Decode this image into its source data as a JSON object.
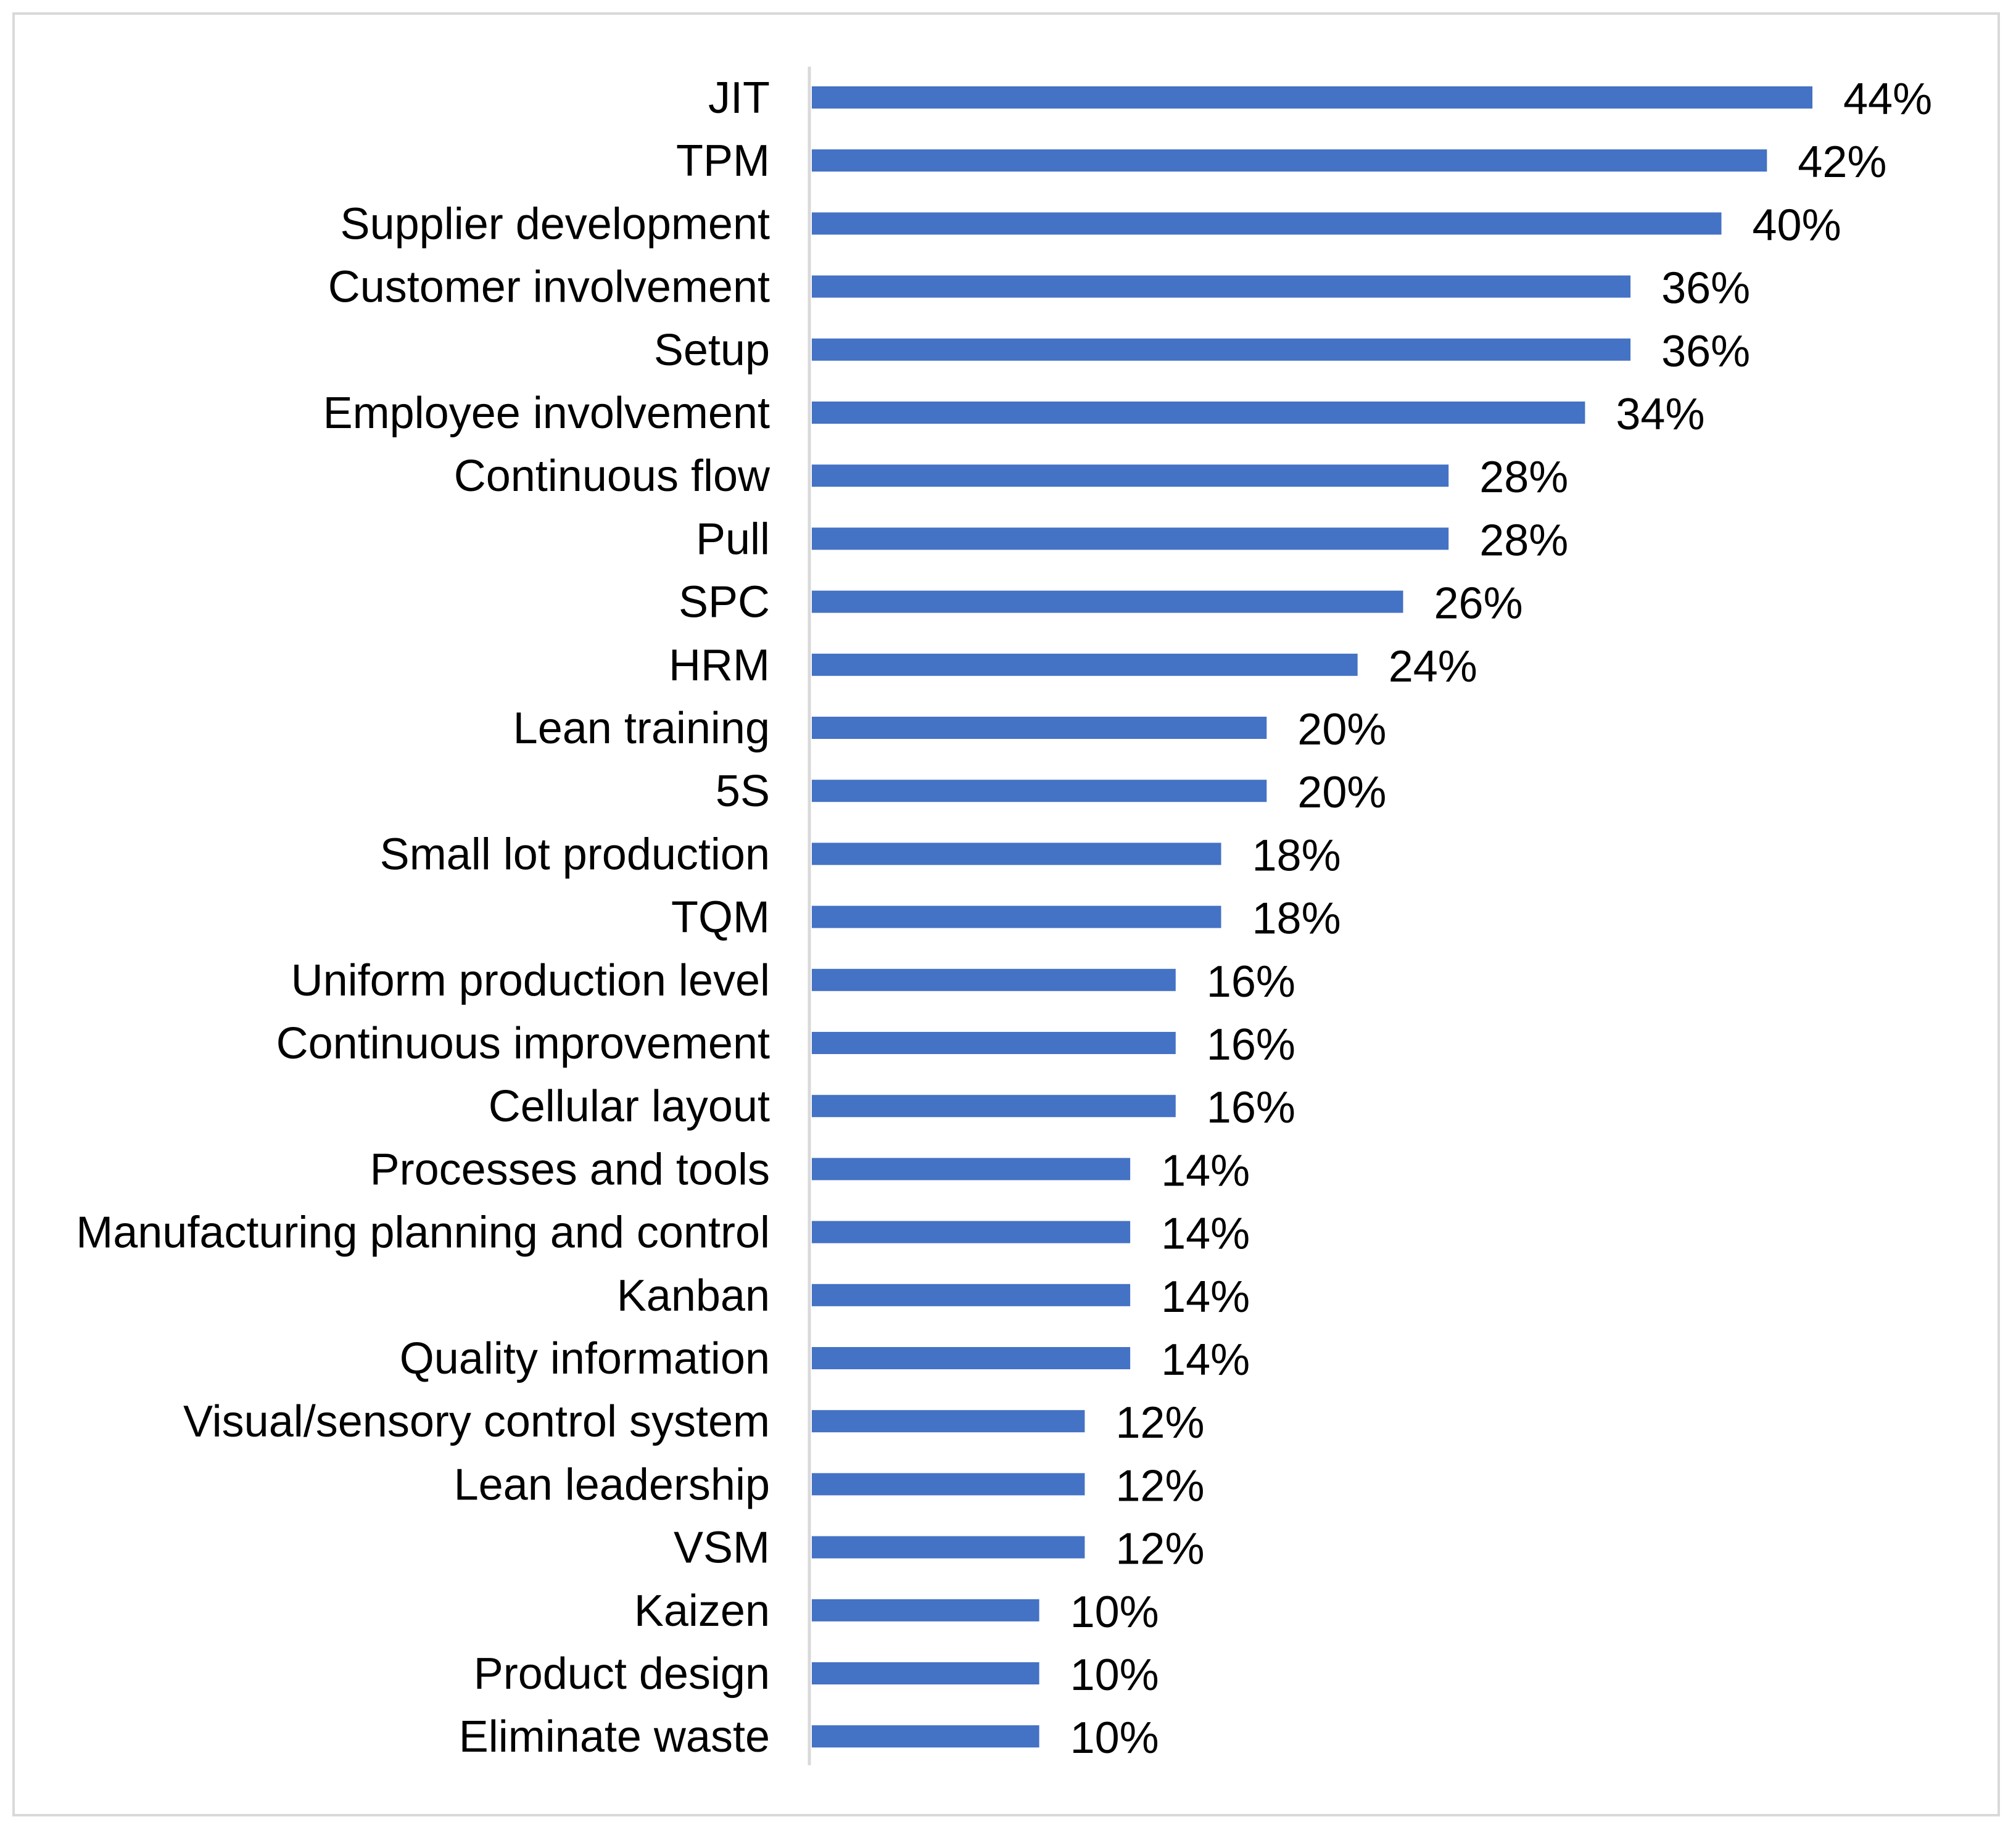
{
  "chart_data": {
    "type": "bar",
    "orientation": "horizontal",
    "title": "",
    "xlabel": "",
    "ylabel": "",
    "xlim": [
      0,
      44
    ],
    "gridlines": false,
    "legend": "none",
    "colors": {
      "bar": "#4472c4",
      "axis": "#d9d9d9",
      "frame": "#d9d9d9"
    },
    "categories": [
      "JIT",
      "TPM",
      "Supplier development",
      "Customer involvement",
      "Setup",
      "Employee involvement",
      "Continuous flow",
      "Pull",
      "SPC",
      "HRM",
      "Lean training",
      "5S",
      "Small lot production",
      "TQM",
      "Uniform production level",
      "Continuous improvement",
      "Cellular layout",
      "Processes and tools",
      "Manufacturing planning and control",
      "Kanban",
      "Quality information",
      "Visual/sensory control system",
      "Lean leadership",
      "VSM",
      "Kaizen",
      "Product design",
      "Eliminate waste"
    ],
    "values": [
      44,
      42,
      40,
      36,
      36,
      34,
      28,
      28,
      26,
      24,
      20,
      20,
      18,
      18,
      16,
      16,
      16,
      14,
      14,
      14,
      14,
      12,
      12,
      12,
      10,
      10,
      10
    ],
    "data_labels": [
      "44%",
      "42%",
      "40%",
      "36%",
      "36%",
      "34%",
      "28%",
      "28%",
      "26%",
      "24%",
      "20%",
      "20%",
      "18%",
      "18%",
      "16%",
      "16%",
      "16%",
      "14%",
      "14%",
      "14%",
      "14%",
      "12%",
      "12%",
      "12%",
      "10%",
      "10%",
      "10%"
    ]
  }
}
